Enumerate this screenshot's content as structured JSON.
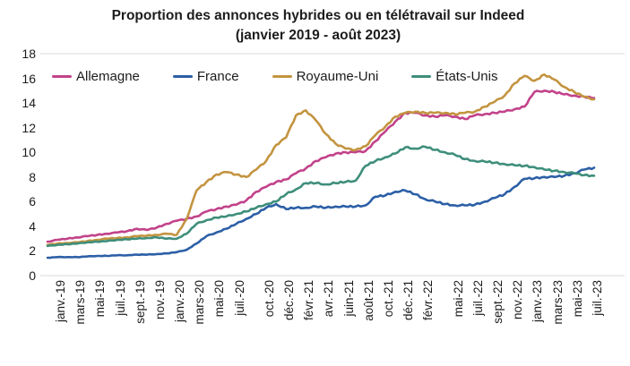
{
  "title": {
    "line1": "Proportion des annonces hybrides ou en télétravail sur Indeed",
    "line2": "(janvier 2019 - août 2023)"
  },
  "chart_data": {
    "type": "line",
    "title": "Proportion des annonces hybrides ou en télétravail sur Indeed (janvier 2019 - août 2023)",
    "xlabel": "",
    "ylabel": "",
    "ylim": [
      0,
      18
    ],
    "y_ticks": [
      0,
      2,
      4,
      6,
      8,
      10,
      12,
      14,
      16,
      18
    ],
    "grid": "none",
    "legend_position": "top-left",
    "axis_color": "#d9d9d9",
    "text_color": "#1c1c1c",
    "x_unit": "months since janv. 2019 (monthly samples, janv. 2019 - août 2023)",
    "x_tick_labels": [
      "janv.-19",
      "mars-19",
      "mai-19",
      "juil.-19",
      "sept.-19",
      "nov.-19",
      "janv.-20",
      "mars-20",
      "mai-20",
      "juil.-20",
      "oct.-20",
      "déc.-20",
      "févr.-21",
      "avr.-21",
      "juin-21",
      "août-21",
      "oct.-21",
      "déc.-21",
      "févr.-22",
      "mai-22",
      "juil.-22",
      "sept.-22",
      "nov.-22",
      "janv.-23",
      "mars-23",
      "mai-23",
      "juil.-23"
    ],
    "x_tick_month_index": [
      0,
      2,
      4,
      6,
      8,
      10,
      12,
      14,
      16,
      18,
      21,
      23,
      25,
      27,
      29,
      31,
      33,
      35,
      37,
      40,
      42,
      44,
      46,
      48,
      50,
      52,
      54
    ],
    "series": [
      {
        "name": "Allemagne",
        "color": "#C2428A",
        "values": [
          2.75,
          2.9,
          3.0,
          3.1,
          3.2,
          3.3,
          3.4,
          3.5,
          3.6,
          3.8,
          3.7,
          3.9,
          4.2,
          4.45,
          4.6,
          4.8,
          5.2,
          5.4,
          5.6,
          5.75,
          6.1,
          6.8,
          7.2,
          7.6,
          7.8,
          8.3,
          8.7,
          9.3,
          9.6,
          9.9,
          10.0,
          10.0,
          10.1,
          10.9,
          11.7,
          12.5,
          13.2,
          13.2,
          13.0,
          12.9,
          13.0,
          12.9,
          12.7,
          13.0,
          13.1,
          13.2,
          13.3,
          13.5,
          13.7,
          14.9,
          15.0,
          14.9,
          14.7,
          14.6,
          14.5,
          14.4
        ]
      },
      {
        "name": "France",
        "color": "#2C5FA6",
        "values": [
          1.45,
          1.5,
          1.5,
          1.5,
          1.55,
          1.6,
          1.6,
          1.65,
          1.65,
          1.7,
          1.7,
          1.75,
          1.8,
          1.9,
          2.1,
          2.6,
          3.2,
          3.5,
          3.8,
          4.2,
          4.6,
          5.0,
          5.5,
          5.8,
          5.4,
          5.5,
          5.5,
          5.6,
          5.5,
          5.6,
          5.6,
          5.6,
          5.7,
          6.4,
          6.5,
          6.8,
          6.9,
          6.6,
          6.2,
          6.0,
          5.8,
          5.7,
          5.7,
          5.75,
          6.0,
          6.3,
          6.6,
          7.2,
          7.85,
          7.9,
          8.0,
          8.0,
          8.1,
          8.3,
          8.6,
          8.75
        ]
      },
      {
        "name": "Royaume-Uni",
        "color": "#C39440",
        "values": [
          2.5,
          2.6,
          2.65,
          2.7,
          2.8,
          2.9,
          3.0,
          3.05,
          3.1,
          3.2,
          3.25,
          3.3,
          3.4,
          3.3,
          4.6,
          6.9,
          7.6,
          8.2,
          8.4,
          8.2,
          8.0,
          8.6,
          9.3,
          10.6,
          11.2,
          13.0,
          13.4,
          12.6,
          11.5,
          10.7,
          10.3,
          10.2,
          10.5,
          11.4,
          12.1,
          12.9,
          13.2,
          13.3,
          13.2,
          13.2,
          13.2,
          13.1,
          13.2,
          13.3,
          13.7,
          14.1,
          14.6,
          15.6,
          16.2,
          15.8,
          16.3,
          15.9,
          15.3,
          14.9,
          14.5,
          14.3
        ]
      },
      {
        "name": "États-Unis",
        "color": "#3E8E7B",
        "values": [
          2.4,
          2.5,
          2.55,
          2.6,
          2.7,
          2.75,
          2.8,
          2.9,
          2.95,
          3.0,
          3.05,
          3.1,
          3.0,
          3.0,
          3.4,
          4.2,
          4.5,
          4.7,
          4.8,
          5.0,
          5.2,
          5.5,
          5.8,
          6.0,
          6.6,
          7.0,
          7.5,
          7.5,
          7.4,
          7.5,
          7.6,
          7.7,
          8.9,
          9.3,
          9.6,
          9.9,
          10.4,
          10.3,
          10.45,
          10.2,
          10.0,
          9.8,
          9.45,
          9.3,
          9.25,
          9.15,
          9.05,
          8.95,
          8.9,
          8.8,
          8.6,
          8.5,
          8.4,
          8.3,
          8.15,
          8.1
        ]
      }
    ]
  }
}
